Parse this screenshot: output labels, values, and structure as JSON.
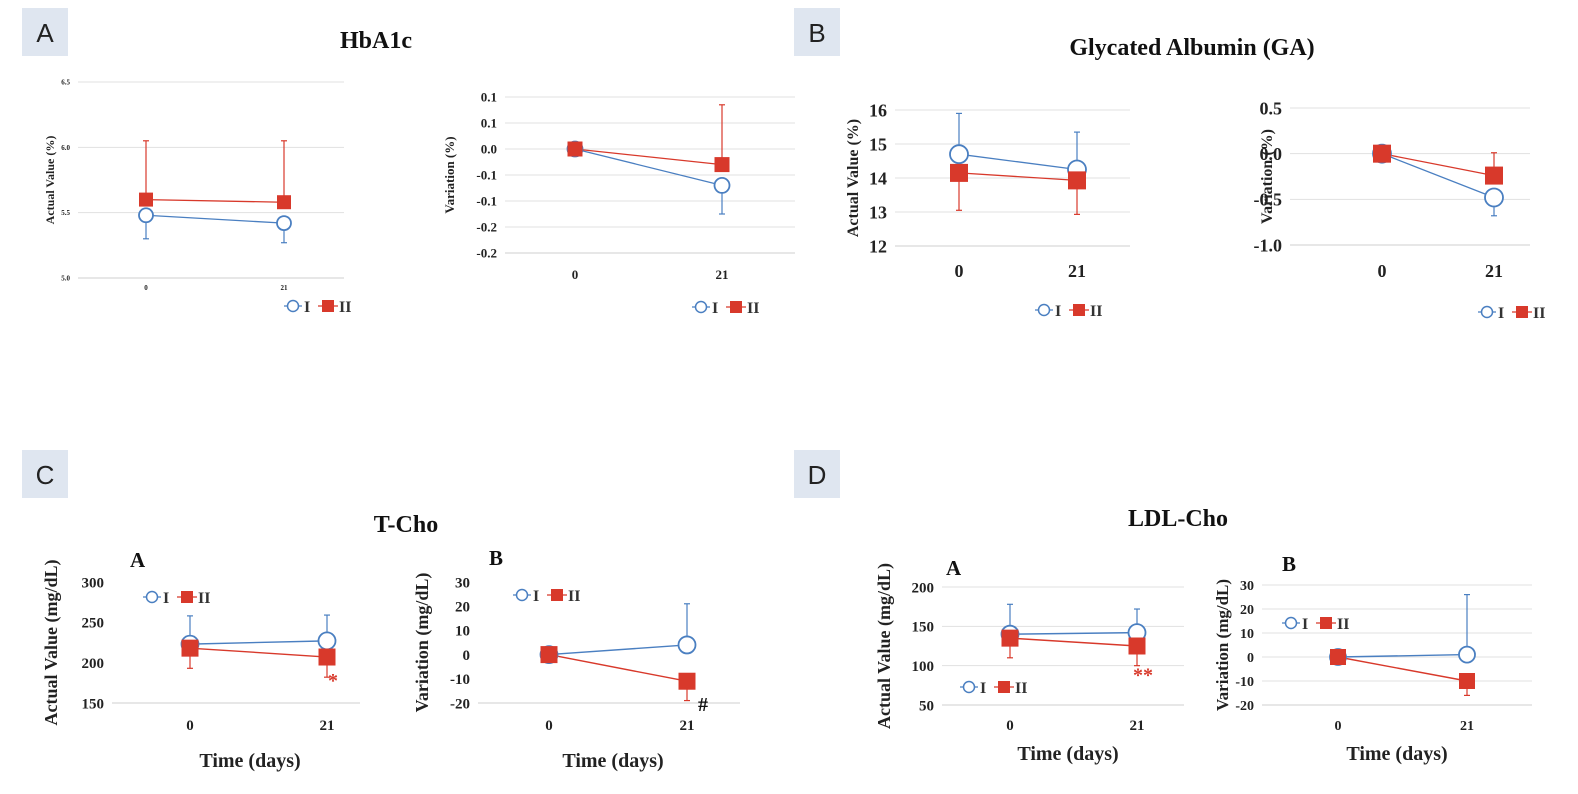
{
  "colors": {
    "series_I": "#4a7fc1",
    "series_II": "#d8392b",
    "panel_label_bg": "#dfe6f0",
    "grid": "#e1e1e1"
  },
  "panels": [
    {
      "label": "A",
      "title": "HbA1c"
    },
    {
      "label": "B",
      "title": "Glycated Albumin (GA)"
    },
    {
      "label": "C",
      "title": "T-Cho"
    },
    {
      "label": "D",
      "title": "LDL-Cho"
    }
  ],
  "chart_data": [
    {
      "type": "line",
      "title": "HbA1c",
      "sublabel": "",
      "ylabel": "Actual Value (%)",
      "xlabel": "",
      "ylim": [
        5.0,
        6.5
      ],
      "yticks": [
        "5.0",
        "5.5",
        "6.0",
        "6.5"
      ],
      "x": [
        0,
        21
      ],
      "xticks": [
        "0",
        "21"
      ],
      "grid": true,
      "legend": "bottom-right",
      "series": [
        {
          "name": "I",
          "values": [
            5.48,
            5.42
          ],
          "err_up": [
            0,
            0
          ],
          "err_down": [
            0.18,
            0.15
          ]
        },
        {
          "name": "II",
          "values": [
            5.6,
            5.58
          ],
          "err_up": [
            0.45,
            0.47
          ],
          "err_down": [
            0,
            0
          ]
        }
      ],
      "annotations": []
    },
    {
      "type": "line",
      "title": "",
      "sublabel": "",
      "ylabel": "Variation (%)",
      "xlabel": "",
      "ylim": [
        -0.2,
        0.1
      ],
      "yticks": [
        "-0.2",
        "-0.2",
        "-0.1",
        "-0.1",
        "0.0",
        "0.1",
        "0.1"
      ],
      "x": [
        0,
        21
      ],
      "xticks": [
        "0",
        "21"
      ],
      "grid": true,
      "legend": "bottom-right",
      "series": [
        {
          "name": "I",
          "values": [
            0.0,
            -0.07
          ],
          "err_up": [
            0,
            0
          ],
          "err_down": [
            0,
            0.055
          ]
        },
        {
          "name": "II",
          "values": [
            0.0,
            -0.03
          ],
          "err_up": [
            0,
            0.115
          ],
          "err_down": [
            0,
            0
          ]
        }
      ],
      "annotations": []
    },
    {
      "type": "line",
      "title": "",
      "sublabel": "",
      "ylabel": "Actual Value (%)",
      "xlabel": "",
      "ylim": [
        12,
        16
      ],
      "yticks": [
        "12",
        "13",
        "14",
        "15",
        "16"
      ],
      "x": [
        0,
        21
      ],
      "xticks": [
        "0",
        "21"
      ],
      "grid": true,
      "legend": "bottom-right",
      "series": [
        {
          "name": "I",
          "values": [
            14.7,
            14.25
          ],
          "err_up": [
            1.2,
            1.1
          ],
          "err_down": [
            0,
            0
          ]
        },
        {
          "name": "II",
          "values": [
            14.15,
            13.93
          ],
          "err_up": [
            0,
            0
          ],
          "err_down": [
            1.1,
            1.0
          ]
        }
      ],
      "annotations": []
    },
    {
      "type": "line",
      "title": "",
      "sublabel": "",
      "ylabel": "Variation (%)",
      "xlabel": "",
      "ylim": [
        -1.0,
        0.5
      ],
      "yticks": [
        "-1.0",
        "-0.5",
        "0.0",
        "0.5"
      ],
      "x": [
        0,
        21
      ],
      "xticks": [
        "0",
        "21"
      ],
      "grid": true,
      "legend": "bottom-right",
      "series": [
        {
          "name": "I",
          "values": [
            0.0,
            -0.48
          ],
          "err_up": [
            0,
            0
          ],
          "err_down": [
            0,
            0.2
          ]
        },
        {
          "name": "II",
          "values": [
            0.0,
            -0.24
          ],
          "err_up": [
            0,
            0.25
          ],
          "err_down": [
            0,
            0
          ]
        }
      ],
      "annotations": []
    },
    {
      "type": "line",
      "title": "",
      "sublabel": "A",
      "ylabel": "Actual Value (mg/dL)",
      "xlabel": "Time (days)",
      "ylim": [
        150,
        300
      ],
      "yticks": [
        "150",
        "200",
        "250",
        "300"
      ],
      "x": [
        0,
        21
      ],
      "xticks": [
        "0",
        "21"
      ],
      "grid": false,
      "legend": "top-left",
      "series": [
        {
          "name": "I",
          "values": [
            223,
            227
          ],
          "err_up": [
            35,
            32
          ],
          "err_down": [
            0,
            0
          ]
        },
        {
          "name": "II",
          "values": [
            218,
            207
          ],
          "err_up": [
            0,
            0
          ],
          "err_down": [
            25,
            25
          ]
        }
      ],
      "annotations": [
        {
          "text": "*",
          "x": 21,
          "y": 180,
          "series": "II"
        }
      ]
    },
    {
      "type": "line",
      "title": "",
      "sublabel": "B",
      "ylabel": "Variation (mg/dL)",
      "xlabel": "Time (days)",
      "ylim": [
        -20,
        30
      ],
      "yticks": [
        "-20",
        "-10",
        "0",
        "10",
        "20",
        "30"
      ],
      "x": [
        0,
        21
      ],
      "xticks": [
        "0",
        "21"
      ],
      "grid": false,
      "legend": "top-left",
      "series": [
        {
          "name": "I",
          "values": [
            0,
            4
          ],
          "err_up": [
            0,
            17
          ],
          "err_down": [
            0,
            0
          ]
        },
        {
          "name": "II",
          "values": [
            0,
            -11
          ],
          "err_up": [
            0,
            0
          ],
          "err_down": [
            0,
            8
          ]
        }
      ],
      "annotations": [
        {
          "text": "#",
          "x": 21,
          "y": -20,
          "series": "II"
        }
      ]
    },
    {
      "type": "line",
      "title": "",
      "sublabel": "A",
      "ylabel": "Actual Value (mg/dL)",
      "xlabel": "Time (days)",
      "ylim": [
        50,
        200
      ],
      "yticks": [
        "50",
        "100",
        "150",
        "200"
      ],
      "x": [
        0,
        21
      ],
      "xticks": [
        "0",
        "21"
      ],
      "grid": true,
      "legend": "bottom-left",
      "series": [
        {
          "name": "I",
          "values": [
            140,
            142
          ],
          "err_up": [
            38,
            30
          ],
          "err_down": [
            0,
            0
          ]
        },
        {
          "name": "II",
          "values": [
            135,
            125
          ],
          "err_up": [
            0,
            0
          ],
          "err_down": [
            25,
            25
          ]
        }
      ],
      "annotations": [
        {
          "text": "**",
          "x": 21,
          "y": 90,
          "series": "II"
        }
      ]
    },
    {
      "type": "line",
      "title": "",
      "sublabel": "B",
      "ylabel": "Variation (mg/dL)",
      "xlabel": "Time (days)",
      "ylim": [
        -20,
        30
      ],
      "yticks": [
        "-20",
        "-10",
        "0",
        "10",
        "20",
        "30"
      ],
      "x": [
        0,
        21
      ],
      "xticks": [
        "0",
        "21"
      ],
      "grid": true,
      "legend": "top-left",
      "series": [
        {
          "name": "I",
          "values": [
            0,
            1
          ],
          "err_up": [
            0,
            25
          ],
          "err_down": [
            0,
            0
          ]
        },
        {
          "name": "II",
          "values": [
            0,
            -10
          ],
          "err_up": [
            0,
            0
          ],
          "err_down": [
            0,
            6
          ]
        }
      ],
      "annotations": []
    }
  ]
}
